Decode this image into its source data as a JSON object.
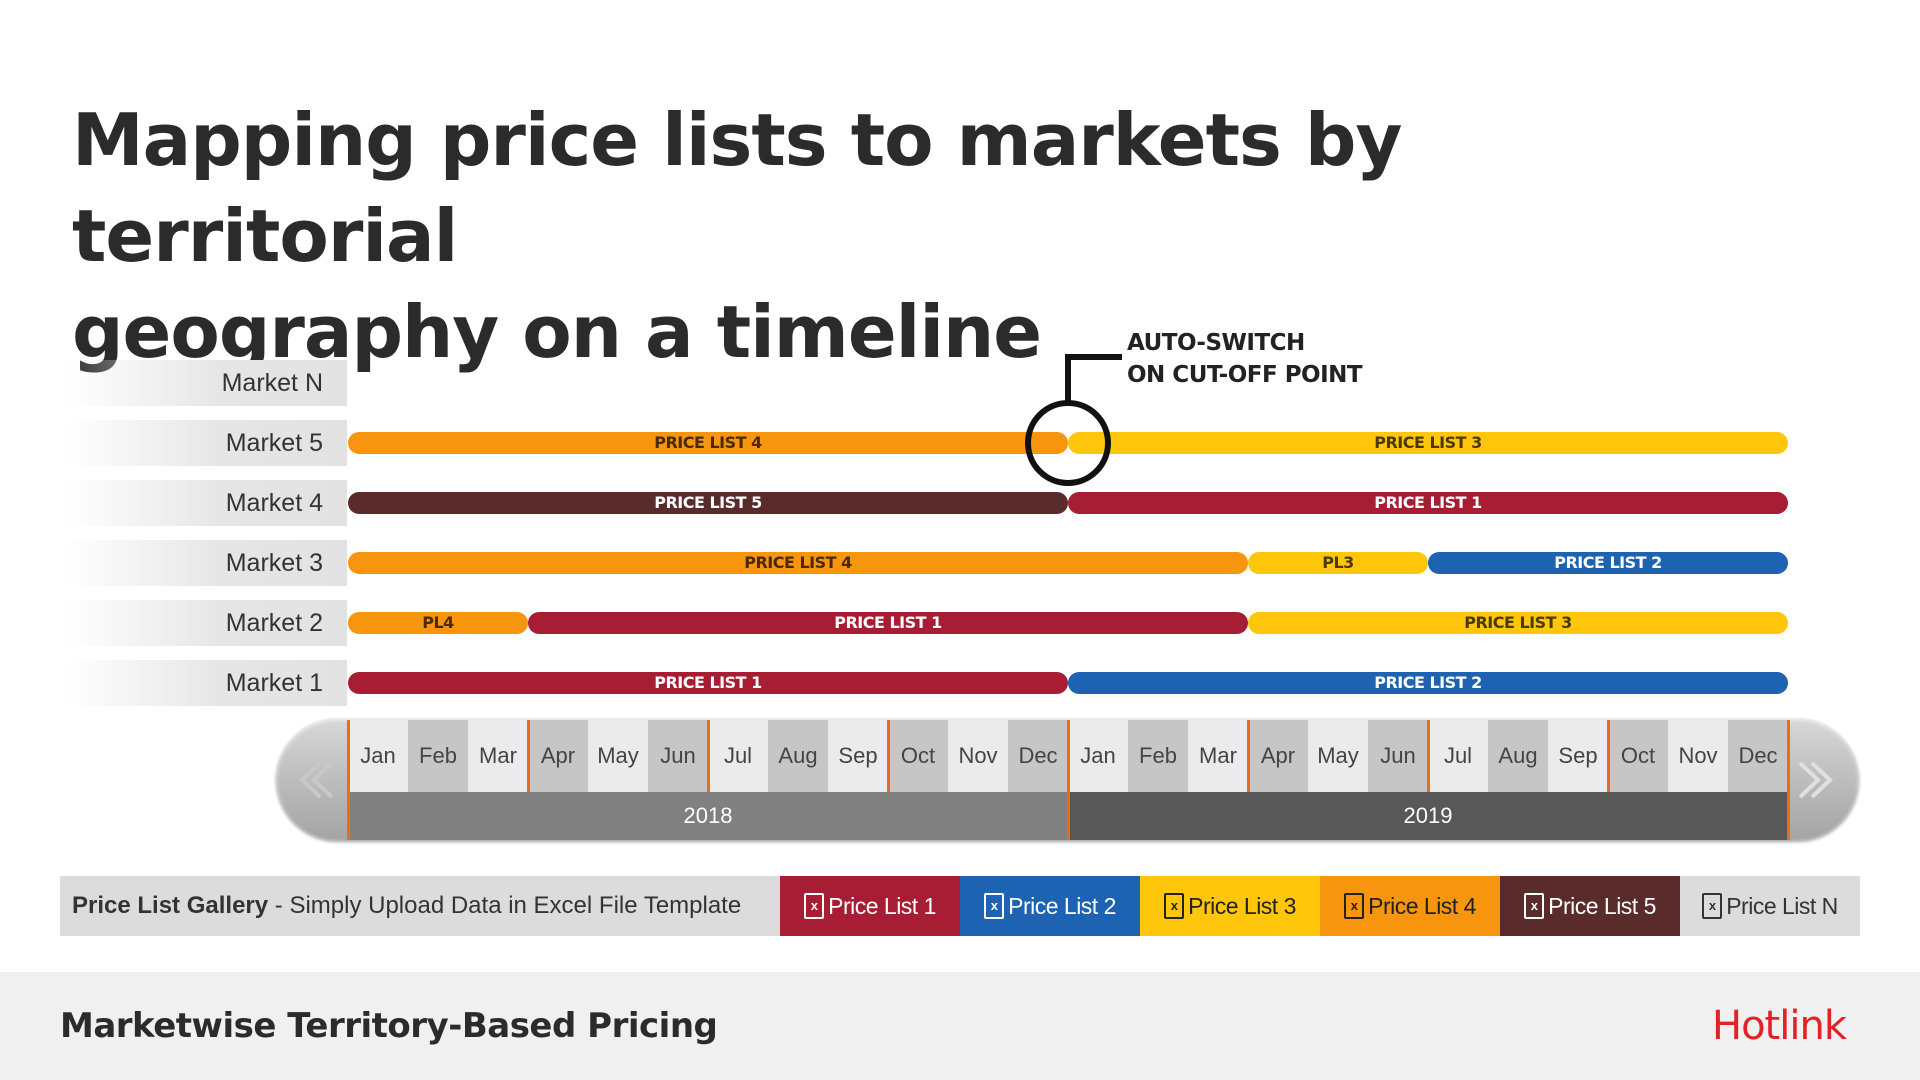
{
  "title_lines": [
    "Mapping price lists to markets by territorial",
    "geography on a timeline"
  ],
  "colors": {
    "pl1": "#a71e34",
    "pl2": "#1e63b2",
    "pl3": "#ffc60b",
    "pl4": "#f7950e",
    "pl5": "#5a2b2b",
    "plN": "#dcdcdc",
    "accent_tick": "#ee6a1f",
    "year2018": "#808080",
    "year2019": "#585858"
  },
  "markets": [
    {
      "label": "Market N",
      "bars": []
    },
    {
      "label": "Market 5",
      "bars": [
        {
          "text": "PRICE LIST 4",
          "start": 0,
          "end": 12,
          "pl": "pl4",
          "text_color": "#4a2a00"
        },
        {
          "text": "PRICE LIST 3",
          "start": 12,
          "end": 24,
          "pl": "pl3",
          "text_color": "#4a3a00"
        }
      ]
    },
    {
      "label": "Market 4",
      "bars": [
        {
          "text": "PRICE LIST 5",
          "start": 0,
          "end": 12,
          "pl": "pl5",
          "text_color": "#ffffff"
        },
        {
          "text": "PRICE LIST 1",
          "start": 12,
          "end": 24,
          "pl": "pl1",
          "text_color": "#ffffff"
        }
      ]
    },
    {
      "label": "Market 3",
      "bars": [
        {
          "text": "PRICE LIST 4",
          "start": 0,
          "end": 15,
          "pl": "pl4",
          "text_color": "#4a2a00"
        },
        {
          "text": "PL3",
          "start": 15,
          "end": 18,
          "pl": "pl3",
          "text_color": "#4a3a00"
        },
        {
          "text": "PRICE LIST 2",
          "start": 18,
          "end": 24,
          "pl": "pl2",
          "text_color": "#ffffff"
        }
      ]
    },
    {
      "label": "Market 2",
      "bars": [
        {
          "text": "PL4",
          "start": 0,
          "end": 3,
          "pl": "pl4",
          "text_color": "#4a2a00"
        },
        {
          "text": "PRICE LIST 1",
          "start": 3,
          "end": 15,
          "pl": "pl1",
          "text_color": "#ffffff"
        },
        {
          "text": "PRICE LIST 3",
          "start": 15,
          "end": 24,
          "pl": "pl3",
          "text_color": "#4a3a00"
        }
      ]
    },
    {
      "label": "Market 1",
      "bars": [
        {
          "text": "PRICE LIST 1",
          "start": 0,
          "end": 12,
          "pl": "pl1",
          "text_color": "#ffffff"
        },
        {
          "text": "PRICE LIST 2",
          "start": 12,
          "end": 24,
          "pl": "pl2",
          "text_color": "#ffffff"
        }
      ]
    }
  ],
  "annotation": [
    "AUTO-SWITCH",
    "ON CUT-OFF POINT"
  ],
  "months": [
    "Jan",
    "Feb",
    "Mar",
    "Apr",
    "May",
    "Jun",
    "Jul",
    "Aug",
    "Sep",
    "Oct",
    "Nov",
    "Dec",
    "Jan",
    "Feb",
    "Mar",
    "Apr",
    "May",
    "Jun",
    "Jul",
    "Aug",
    "Sep",
    "Oct",
    "Nov",
    "Dec"
  ],
  "years": [
    "2018",
    "2019"
  ],
  "gallery": {
    "title_bold": "Price List Gallery",
    "title_rest": " - Simply Upload Data in Excel File Template",
    "icon_letter": "x",
    "items": [
      {
        "label": "Price List 1",
        "pl": "pl1",
        "text_color": "#ffffff"
      },
      {
        "label": "Price List 2",
        "pl": "pl2",
        "text_color": "#ffffff"
      },
      {
        "label": "Price List 3",
        "pl": "pl3",
        "text_color": "#222222"
      },
      {
        "label": "Price List 4",
        "pl": "pl4",
        "text_color": "#222222"
      },
      {
        "label": "Price List 5",
        "pl": "pl5",
        "text_color": "#ffffff"
      },
      {
        "label": "Price List N",
        "pl": "plN",
        "text_color": "#333333"
      }
    ]
  },
  "footer": {
    "text": "Marketwise Territory-Based Pricing",
    "logo": "Hotlink"
  }
}
